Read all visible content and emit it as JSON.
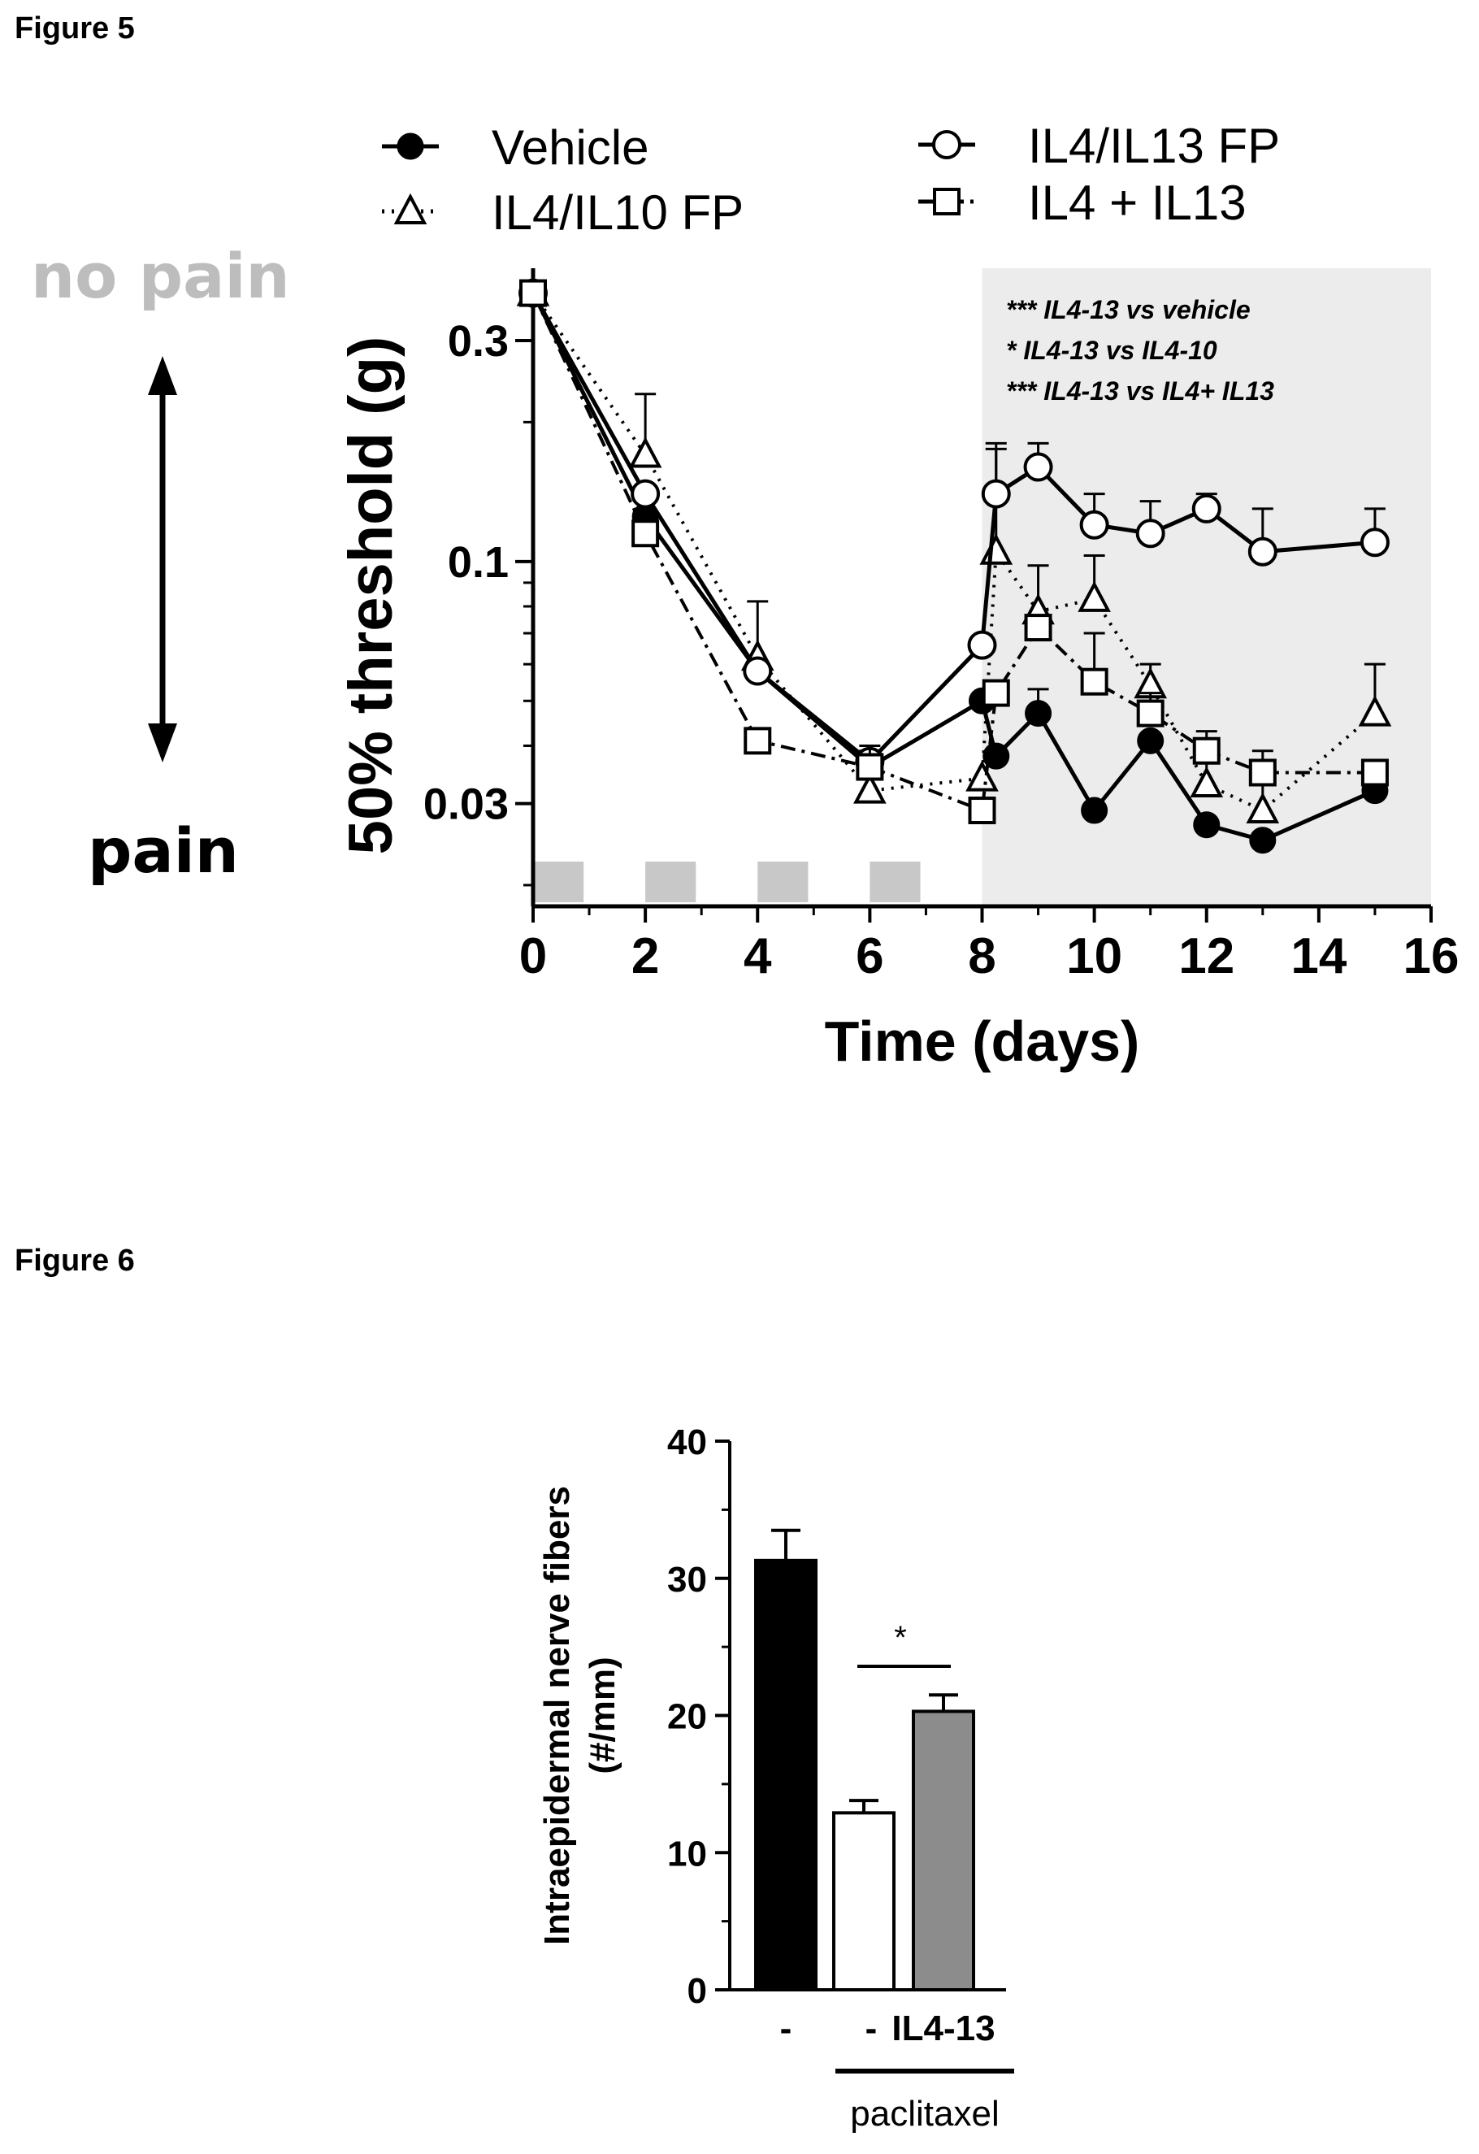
{
  "figure5": {
    "label": "Figure 5",
    "no_pain": "no pain",
    "pain": "pain",
    "chart_data": {
      "type": "line",
      "title": "",
      "xlabel": "Time (days)",
      "ylabel": "50% threshold (g)",
      "x_scale": "linear",
      "y_scale": "log",
      "xlim": [
        0,
        16
      ],
      "ylim": [
        0.018,
        0.43
      ],
      "xticks": [
        0,
        2,
        4,
        6,
        8,
        10,
        12,
        14,
        16
      ],
      "yticks": [
        {
          "value": 0.03,
          "label": "0.03"
        },
        {
          "value": 0.1,
          "label": "0.1"
        },
        {
          "value": 0.3,
          "label": "0.3"
        }
      ],
      "grid": false,
      "legend": "top",
      "shaded_region": {
        "x_start": 8,
        "x_end": 16
      },
      "treatment_markers": [
        0,
        2,
        4,
        6
      ],
      "annotations": [
        "*** IL4-13 vs vehicle",
        "*    IL4-13 vs IL4-10",
        "*** IL4-13 vs IL4+ IL13"
      ],
      "series": [
        {
          "name": "Vehicle",
          "marker": "filled-circle",
          "dash": "solid",
          "x": [
            0,
            2,
            4,
            6,
            8,
            8.25,
            9,
            10,
            11,
            12,
            13,
            15
          ],
          "y": [
            0.38,
            0.125,
            0.058,
            0.036,
            0.05,
            0.038,
            0.047,
            0.029,
            0.041,
            0.027,
            0.025,
            0.032
          ],
          "err": [
            0,
            0,
            0,
            0,
            0,
            0,
            0.006,
            0,
            0,
            0,
            0,
            0
          ]
        },
        {
          "name": "IL4/IL10 FP",
          "marker": "open-triangle",
          "dash": "dotted",
          "x": [
            0,
            2,
            4,
            6,
            8,
            8.25,
            9,
            10,
            11,
            12,
            13,
            15
          ],
          "y": [
            0.38,
            0.17,
            0.062,
            0.032,
            0.034,
            0.105,
            0.078,
            0.083,
            0.054,
            0.033,
            0.029,
            0.047
          ],
          "err": [
            0,
            0.06,
            0.02,
            0.007,
            0,
            0.07,
            0.02,
            0.02,
            0.006,
            0.004,
            0.004,
            0.013
          ]
        },
        {
          "name": "IL4/IL13 FP",
          "marker": "open-circle",
          "dash": "solid",
          "x": [
            0,
            2,
            4,
            6,
            8,
            8.25,
            9,
            10,
            11,
            12,
            13,
            15
          ],
          "y": [
            0.38,
            0.14,
            0.058,
            0.037,
            0.066,
            0.14,
            0.16,
            0.12,
            0.115,
            0.13,
            0.105,
            0.11
          ],
          "err": [
            0,
            0,
            0,
            0,
            0,
            0.04,
            0.02,
            0.02,
            0.02,
            0.01,
            0.025,
            0.02
          ]
        },
        {
          "name": "IL4 + IL13",
          "marker": "open-square",
          "dash": "dashdot",
          "x": [
            0,
            2,
            4,
            6,
            8,
            8.25,
            9,
            10,
            11,
            12,
            13,
            15
          ],
          "y": [
            0.38,
            0.115,
            0.041,
            0.036,
            0.029,
            0.052,
            0.072,
            0.055,
            0.047,
            0.039,
            0.035,
            0.035
          ],
          "err": [
            0,
            0,
            0,
            0.004,
            0,
            0,
            0,
            0.015,
            0.005,
            0.004,
            0.004,
            0
          ]
        }
      ]
    }
  },
  "figure6": {
    "label": "Figure 6",
    "chart_data": {
      "type": "bar",
      "title": "",
      "xlabel": "",
      "ylabel": "Intraepidermal nerve fibers (#/mm)",
      "ylim": [
        0,
        40
      ],
      "yticks": [
        0,
        10,
        20,
        30,
        40
      ],
      "grid": false,
      "categories": [
        "-",
        "-",
        "IL4-13"
      ],
      "values": [
        31.3,
        12.9,
        20.3
      ],
      "errors": [
        2.2,
        0.9,
        1.2
      ],
      "colors": [
        "#000000",
        "#ffffff",
        "#8c8c8c"
      ],
      "group_label": "paclitaxel",
      "significance": {
        "label": "*",
        "between": [
          1,
          2
        ]
      }
    }
  }
}
